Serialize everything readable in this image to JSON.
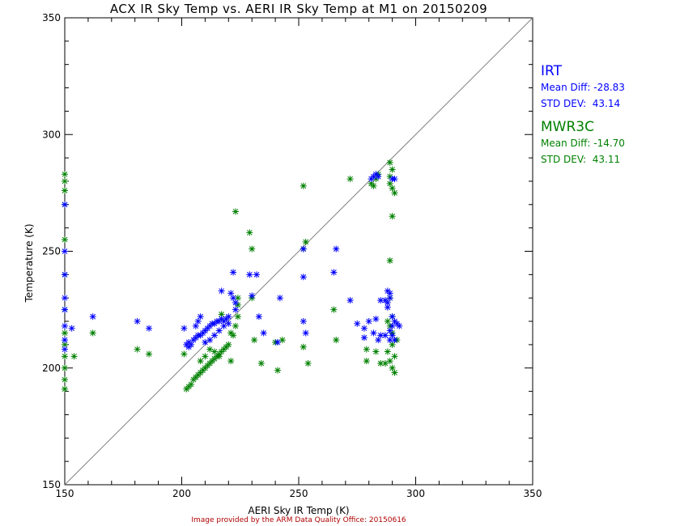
{
  "chart_data": {
    "type": "scatter",
    "title": "ACX IR Sky Temp vs. AERI IR Sky Temp at M1 on 20150209",
    "xlabel": "AERI Sky IR Temp (K)",
    "ylabel": "Temperature (K)",
    "xlim": [
      150,
      350
    ],
    "ylim": [
      150,
      350
    ],
    "xticks": [
      150,
      200,
      250,
      300,
      350
    ],
    "yticks": [
      150,
      200,
      250,
      300,
      350
    ],
    "reference_line": "1:1 diagonal",
    "footer": "Image provided by the ARM Data Quality Office: 20150616",
    "legend_placement": "right",
    "series": [
      {
        "name": "IRT",
        "color": "#0000ff",
        "marker": "asterisk",
        "mean_diff_label": "Mean Diff:",
        "mean_diff": "-28.83",
        "std_dev_label": "STD DEV:",
        "std_dev": "43.14",
        "points": [
          [
            150,
            270
          ],
          [
            150,
            250
          ],
          [
            150,
            240
          ],
          [
            150,
            230
          ],
          [
            150,
            225
          ],
          [
            150,
            218
          ],
          [
            150,
            212
          ],
          [
            150,
            208
          ],
          [
            153,
            217
          ],
          [
            162,
            222
          ],
          [
            181,
            220
          ],
          [
            186,
            217
          ],
          [
            201,
            217
          ],
          [
            202,
            210
          ],
          [
            203,
            209
          ],
          [
            203,
            211
          ],
          [
            204,
            210
          ],
          [
            205,
            212
          ],
          [
            206,
            213
          ],
          [
            207,
            214
          ],
          [
            208,
            214
          ],
          [
            209,
            215
          ],
          [
            210,
            216
          ],
          [
            211,
            217
          ],
          [
            212,
            218
          ],
          [
            213,
            219
          ],
          [
            214,
            219
          ],
          [
            215,
            220
          ],
          [
            216,
            220
          ],
          [
            217,
            221
          ],
          [
            218,
            220
          ],
          [
            219,
            221
          ],
          [
            207,
            220
          ],
          [
            208,
            222
          ],
          [
            206,
            218
          ],
          [
            210,
            211
          ],
          [
            212,
            212
          ],
          [
            214,
            214
          ],
          [
            216,
            216
          ],
          [
            218,
            218
          ],
          [
            220,
            219
          ],
          [
            222,
            241
          ],
          [
            221,
            232
          ],
          [
            217,
            233
          ],
          [
            222,
            230
          ],
          [
            223,
            228
          ],
          [
            223,
            225
          ],
          [
            220,
            222
          ],
          [
            229,
            240
          ],
          [
            232,
            240
          ],
          [
            230,
            231
          ],
          [
            233,
            222
          ],
          [
            235,
            215
          ],
          [
            241,
            211
          ],
          [
            242,
            230
          ],
          [
            252,
            251
          ],
          [
            252,
            239
          ],
          [
            252,
            220
          ],
          [
            253,
            215
          ],
          [
            266,
            251
          ],
          [
            265,
            241
          ],
          [
            272,
            229
          ],
          [
            280,
            220
          ],
          [
            278,
            217
          ],
          [
            275,
            219
          ],
          [
            278,
            213
          ],
          [
            282,
            215
          ],
          [
            283,
            221
          ],
          [
            285,
            214
          ],
          [
            287,
            214
          ],
          [
            281,
            281
          ],
          [
            282,
            282
          ],
          [
            283,
            283
          ],
          [
            284,
            282
          ],
          [
            288,
            233
          ],
          [
            289,
            232
          ],
          [
            289,
            230
          ],
          [
            288,
            228
          ],
          [
            290,
            222
          ],
          [
            291,
            220
          ],
          [
            290,
            218
          ],
          [
            292,
            219
          ],
          [
            289,
            216
          ],
          [
            290,
            214
          ],
          [
            291,
            212
          ],
          [
            289,
            212
          ],
          [
            290,
            281
          ],
          [
            291,
            281
          ],
          [
            293,
            218
          ],
          [
            285,
            229
          ],
          [
            287,
            229
          ],
          [
            288,
            226
          ],
          [
            284,
            212
          ]
        ]
      },
      {
        "name": "MWR3C",
        "color": "#008000",
        "marker": "asterisk",
        "mean_diff_label": "Mean Diff:",
        "mean_diff": "-14.70",
        "std_dev_label": "STD DEV:",
        "std_dev": "43.11",
        "points": [
          [
            150,
            283
          ],
          [
            150,
            280
          ],
          [
            150,
            276
          ],
          [
            150,
            270
          ],
          [
            150,
            255
          ],
          [
            150,
            240
          ],
          [
            150,
            225
          ],
          [
            150,
            215
          ],
          [
            150,
            210
          ],
          [
            150,
            205
          ],
          [
            150,
            200
          ],
          [
            150,
            195
          ],
          [
            150,
            191
          ],
          [
            154,
            205
          ],
          [
            162,
            215
          ],
          [
            181,
            208
          ],
          [
            186,
            206
          ],
          [
            201,
            206
          ],
          [
            202,
            191
          ],
          [
            203,
            192
          ],
          [
            204,
            193
          ],
          [
            205,
            195
          ],
          [
            206,
            196
          ],
          [
            207,
            197
          ],
          [
            208,
            198
          ],
          [
            209,
            199
          ],
          [
            210,
            200
          ],
          [
            211,
            201
          ],
          [
            212,
            202
          ],
          [
            213,
            203
          ],
          [
            214,
            204
          ],
          [
            215,
            205
          ],
          [
            216,
            206
          ],
          [
            217,
            207
          ],
          [
            218,
            208
          ],
          [
            219,
            209
          ],
          [
            220,
            210
          ],
          [
            212,
            208
          ],
          [
            214,
            207
          ],
          [
            216,
            205
          ],
          [
            210,
            205
          ],
          [
            208,
            203
          ],
          [
            217,
            223
          ],
          [
            221,
            215
          ],
          [
            221,
            203
          ],
          [
            222,
            214
          ],
          [
            223,
            218
          ],
          [
            224,
            222
          ],
          [
            224,
            227
          ],
          [
            224,
            230
          ],
          [
            223,
            267
          ],
          [
            229,
            258
          ],
          [
            230,
            251
          ],
          [
            230,
            230
          ],
          [
            231,
            212
          ],
          [
            234,
            202
          ],
          [
            240,
            211
          ],
          [
            241,
            199
          ],
          [
            243,
            212
          ],
          [
            252,
            278
          ],
          [
            253,
            254
          ],
          [
            252,
            251
          ],
          [
            252,
            209
          ],
          [
            254,
            202
          ],
          [
            265,
            225
          ],
          [
            266,
            212
          ],
          [
            272,
            281
          ],
          [
            279,
            208
          ],
          [
            279,
            203
          ],
          [
            283,
            207
          ],
          [
            285,
            202
          ],
          [
            287,
            202
          ],
          [
            288,
            207
          ],
          [
            281,
            279
          ],
          [
            282,
            278
          ],
          [
            283,
            281
          ],
          [
            284,
            283
          ],
          [
            289,
            288
          ],
          [
            290,
            285
          ],
          [
            289,
            282
          ],
          [
            289,
            279
          ],
          [
            290,
            277
          ],
          [
            291,
            275
          ],
          [
            290,
            265
          ],
          [
            289,
            246
          ],
          [
            289,
            230
          ],
          [
            290,
            215
          ],
          [
            290,
            210
          ],
          [
            291,
            205
          ],
          [
            289,
            203
          ],
          [
            290,
            200
          ],
          [
            291,
            198
          ],
          [
            292,
            212
          ],
          [
            290,
            222
          ],
          [
            288,
            220
          ],
          [
            289,
            218
          ]
        ]
      }
    ]
  }
}
